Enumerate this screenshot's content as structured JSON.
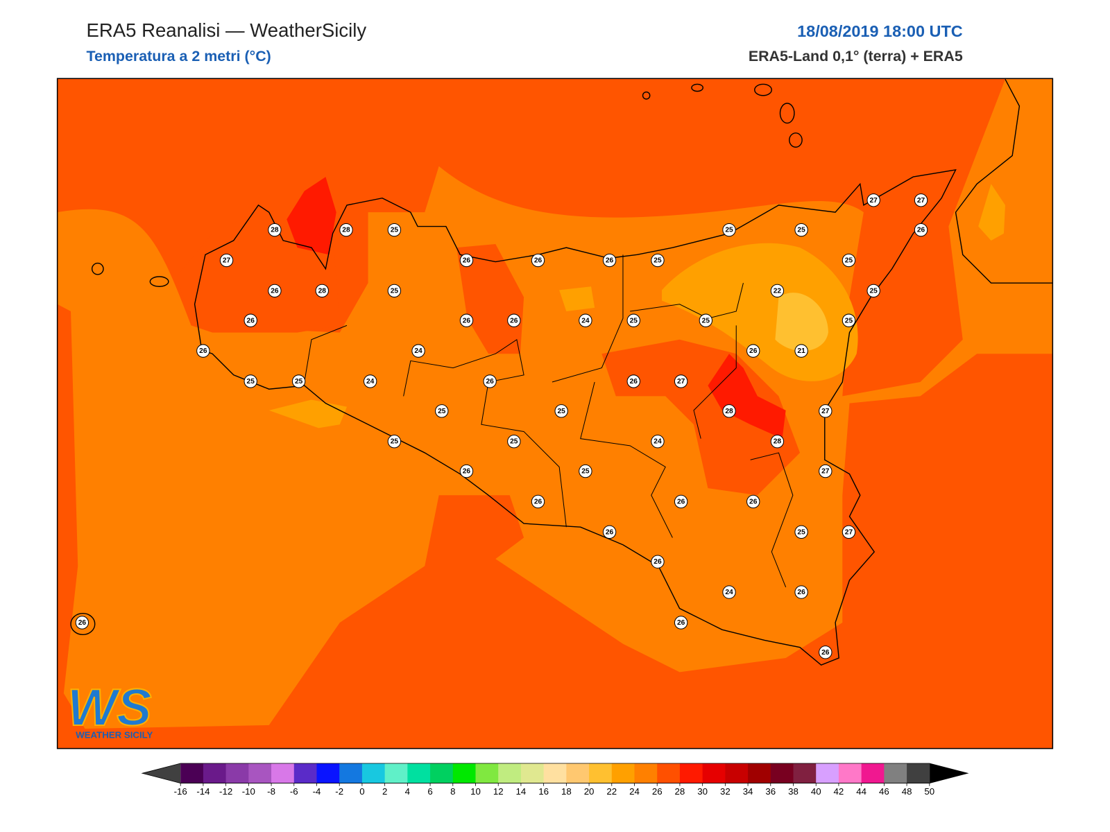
{
  "header": {
    "title": "ERA5 Reanalisi — WeatherSicily",
    "subtitle": "Temperatura a 2 metri (°C)",
    "datetime": "18/08/2019 18:00 UTC",
    "source": "ERA5-Land 0,1° (terra) + ERA5"
  },
  "stations": {
    "values": [
      28,
      28,
      25,
      27,
      26,
      28,
      25,
      26,
      26,
      25,
      25,
      24,
      24,
      26,
      26,
      26,
      25,
      25,
      25,
      27,
      27,
      26,
      25,
      25,
      22,
      26,
      26,
      24,
      25,
      25,
      25,
      26,
      21,
      26,
      26,
      27,
      25,
      25,
      28,
      27,
      25,
      25,
      24,
      28,
      26,
      25,
      27,
      26,
      26,
      26,
      26,
      25,
      27,
      26,
      24,
      26,
      26,
      26,
      26
    ]
  },
  "colorbar": {
    "ticks": [
      -16,
      -14,
      -12,
      -10,
      -8,
      -6,
      -4,
      -2,
      0,
      2,
      4,
      6,
      8,
      10,
      12,
      14,
      16,
      18,
      20,
      22,
      24,
      26,
      28,
      30,
      32,
      34,
      36,
      38,
      40,
      42,
      44,
      46,
      48,
      50
    ],
    "colors": [
      "#4b0055",
      "#6a1a8a",
      "#8a3aa8",
      "#a855c0",
      "#d878e8",
      "#5a2bc8",
      "#0a14ff",
      "#1478e0",
      "#18c8e0",
      "#60f0c8",
      "#00e0a0",
      "#00d060",
      "#00e800",
      "#80e840",
      "#c0ec80",
      "#e0e890",
      "#ffe0a0",
      "#ffc870",
      "#ffc030",
      "#ffa000",
      "#ff8000",
      "#ff5000",
      "#ff1a00",
      "#e60000",
      "#c80000",
      "#a00000",
      "#780020",
      "#802040",
      "#d8a0ff",
      "#ff78c8",
      "#f01890",
      "#808080",
      "#404040"
    ],
    "under_color": "#404040",
    "over_color": "#000000"
  },
  "logo": {
    "text": "WS",
    "caption": "Weather Sicily"
  }
}
